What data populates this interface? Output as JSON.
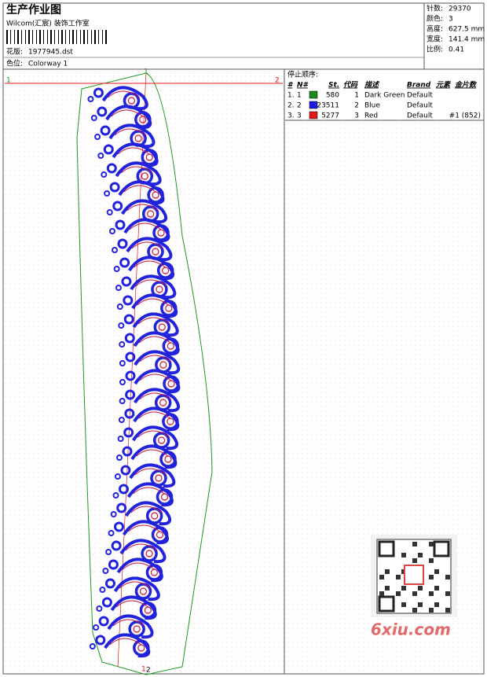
{
  "header": {
    "title": "生产作业图",
    "studio": "Wilcom(汇宸) 装饰工作室",
    "design_label": "花版:",
    "design": "1977945.dst",
    "colorway_label": "色位:",
    "colorway": "Colorway 1"
  },
  "stats": [
    {
      "label": "针数:",
      "value": "29370"
    },
    {
      "label": "颜色:",
      "value": "3"
    },
    {
      "label": "高度:",
      "value": "627.5 mm"
    },
    {
      "label": "宽度:",
      "value": "141.4 mm"
    },
    {
      "label": "比例:",
      "value": "0.41"
    }
  ],
  "markers": {
    "top_left": "1",
    "top_center": "1",
    "top_right": "2",
    "bottom_center": "1",
    "bottom_right": "2"
  },
  "stop_sequence": {
    "title": "停止顺序:",
    "columns": [
      "#",
      "N#",
      "St.",
      "代码",
      "描述",
      "Brand",
      "元素",
      "金片数"
    ],
    "rows": [
      {
        "index": "1.",
        "needle": 1,
        "color": "#1a8a1a",
        "stitches": 580,
        "code": 1,
        "description": "Dark Green",
        "brand": "Default"
      },
      {
        "index": "2.",
        "needle": 2,
        "color": "#1a1ae0",
        "stitches": 23511,
        "code": 2,
        "description": "Blue",
        "brand": "Default"
      },
      {
        "index": "3.",
        "needle": 3,
        "color": "#e01a1a",
        "stitches": 5277,
        "code": 3,
        "description": "Red",
        "brand": "Default",
        "sequins": "#1 (852)"
      }
    ]
  },
  "watermark": "6xiu.com"
}
